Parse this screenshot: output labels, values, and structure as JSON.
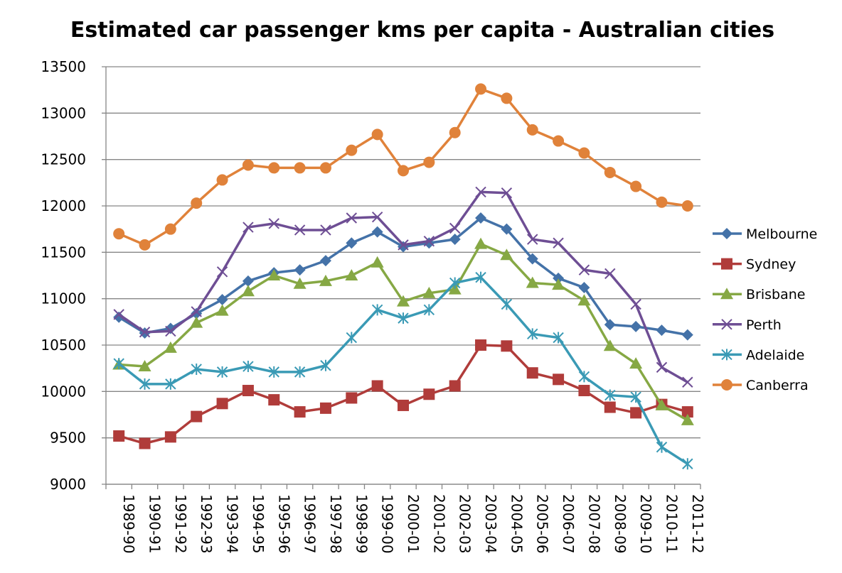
{
  "chart_data": {
    "type": "line",
    "title": "Estimated car passenger kms per capita - Australian cities",
    "xlabel": "",
    "ylabel": "",
    "ylim": [
      9000,
      13500
    ],
    "yticks": [
      9000,
      9500,
      10000,
      10500,
      11000,
      11500,
      12000,
      12500,
      13000,
      13500
    ],
    "grid": true,
    "legend_position": "right",
    "categories": [
      "1989-90",
      "1990-91",
      "1991-92",
      "1992-93",
      "1993-94",
      "1994-95",
      "1995-96",
      "1996-97",
      "1997-98",
      "1998-99",
      "1999-00",
      "2000-01",
      "2001-02",
      "2002-03",
      "2003-04",
      "2004-05",
      "2005-06",
      "2006-07",
      "2007-08",
      "2008-09",
      "2009-10",
      "2010-11",
      "2011-12"
    ],
    "series": [
      {
        "name": "Melbourne",
        "color": "#4472a8",
        "marker": "diamond",
        "values": [
          10800,
          10630,
          10680,
          10840,
          10990,
          11190,
          11280,
          11310,
          11410,
          11600,
          11720,
          11560,
          11600,
          11640,
          11870,
          11750,
          11430,
          11220,
          11120,
          10720,
          10700,
          10660,
          10610
        ]
      },
      {
        "name": "Sydney",
        "color": "#b03c3a",
        "marker": "square",
        "values": [
          9520,
          9440,
          9510,
          9730,
          9870,
          10010,
          9910,
          9780,
          9820,
          9930,
          10060,
          9850,
          9970,
          10060,
          10500,
          10490,
          10200,
          10130,
          10010,
          9830,
          9770,
          9860,
          9780
        ]
      },
      {
        "name": "Brisbane",
        "color": "#86a844",
        "marker": "triangle",
        "values": [
          10290,
          10270,
          10470,
          10740,
          10870,
          11080,
          11250,
          11160,
          11190,
          11250,
          11390,
          10970,
          11060,
          11100,
          11590,
          11470,
          11170,
          11150,
          10980,
          10490,
          10300,
          9850,
          9690
        ]
      },
      {
        "name": "Perth",
        "color": "#6e4e94",
        "marker": "x",
        "values": [
          10830,
          10640,
          10650,
          10860,
          11290,
          11770,
          11810,
          11740,
          11740,
          11870,
          11880,
          11580,
          11620,
          11760,
          12150,
          12140,
          11640,
          11600,
          11310,
          11270,
          10940,
          10260,
          10100
        ]
      },
      {
        "name": "Adelaide",
        "color": "#3a9ab5",
        "marker": "asterisk",
        "values": [
          10300,
          10080,
          10080,
          10240,
          10210,
          10270,
          10210,
          10210,
          10280,
          10580,
          10880,
          10790,
          10880,
          11170,
          11230,
          10940,
          10620,
          10580,
          10160,
          9960,
          9940,
          9400,
          9220
        ]
      },
      {
        "name": "Canberra",
        "color": "#e0823a",
        "marker": "circle",
        "values": [
          11700,
          11580,
          11750,
          12030,
          12280,
          12440,
          12410,
          12410,
          12410,
          12600,
          12770,
          12380,
          12470,
          12790,
          13260,
          13160,
          12820,
          12700,
          12570,
          12360,
          12210,
          12040,
          12000
        ]
      }
    ]
  }
}
